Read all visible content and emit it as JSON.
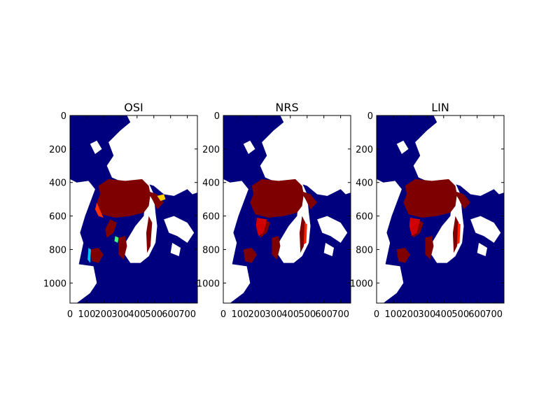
{
  "chart_data": [
    {
      "type": "heatmap",
      "title": "OSI",
      "x_ticks": [
        "0",
        "100",
        "200",
        "300",
        "400",
        "500",
        "600",
        "700"
      ],
      "y_ticks": [
        "0",
        "200",
        "400",
        "600",
        "800",
        "1000"
      ],
      "xlim": [
        0,
        760
      ],
      "ylim": [
        1120,
        0
      ],
      "colormap": "jet",
      "colors": {
        "ocean": "#00007f",
        "land": "#ffffff",
        "ice_high": "#7f0000"
      }
    },
    {
      "type": "heatmap",
      "title": "NRS",
      "x_ticks": [
        "0",
        "100",
        "200",
        "300",
        "400",
        "500",
        "600",
        "700"
      ],
      "y_ticks": [
        "0",
        "200",
        "400",
        "600",
        "800",
        "1000"
      ],
      "xlim": [
        0,
        760
      ],
      "ylim": [
        1120,
        0
      ],
      "colormap": "jet",
      "colors": {
        "ocean": "#00007f",
        "land": "#ffffff",
        "ice_high": "#7f0000"
      }
    },
    {
      "type": "heatmap",
      "title": "LIN",
      "x_ticks": [
        "0",
        "100",
        "200",
        "300",
        "400",
        "500",
        "600",
        "700"
      ],
      "y_ticks": [
        "0",
        "200",
        "400",
        "600",
        "800",
        "1000"
      ],
      "xlim": [
        0,
        760
      ],
      "ylim": [
        1120,
        0
      ],
      "colormap": "jet",
      "colors": {
        "ocean": "#00007f",
        "land": "#ffffff",
        "ice_high": "#7f0000"
      }
    }
  ]
}
